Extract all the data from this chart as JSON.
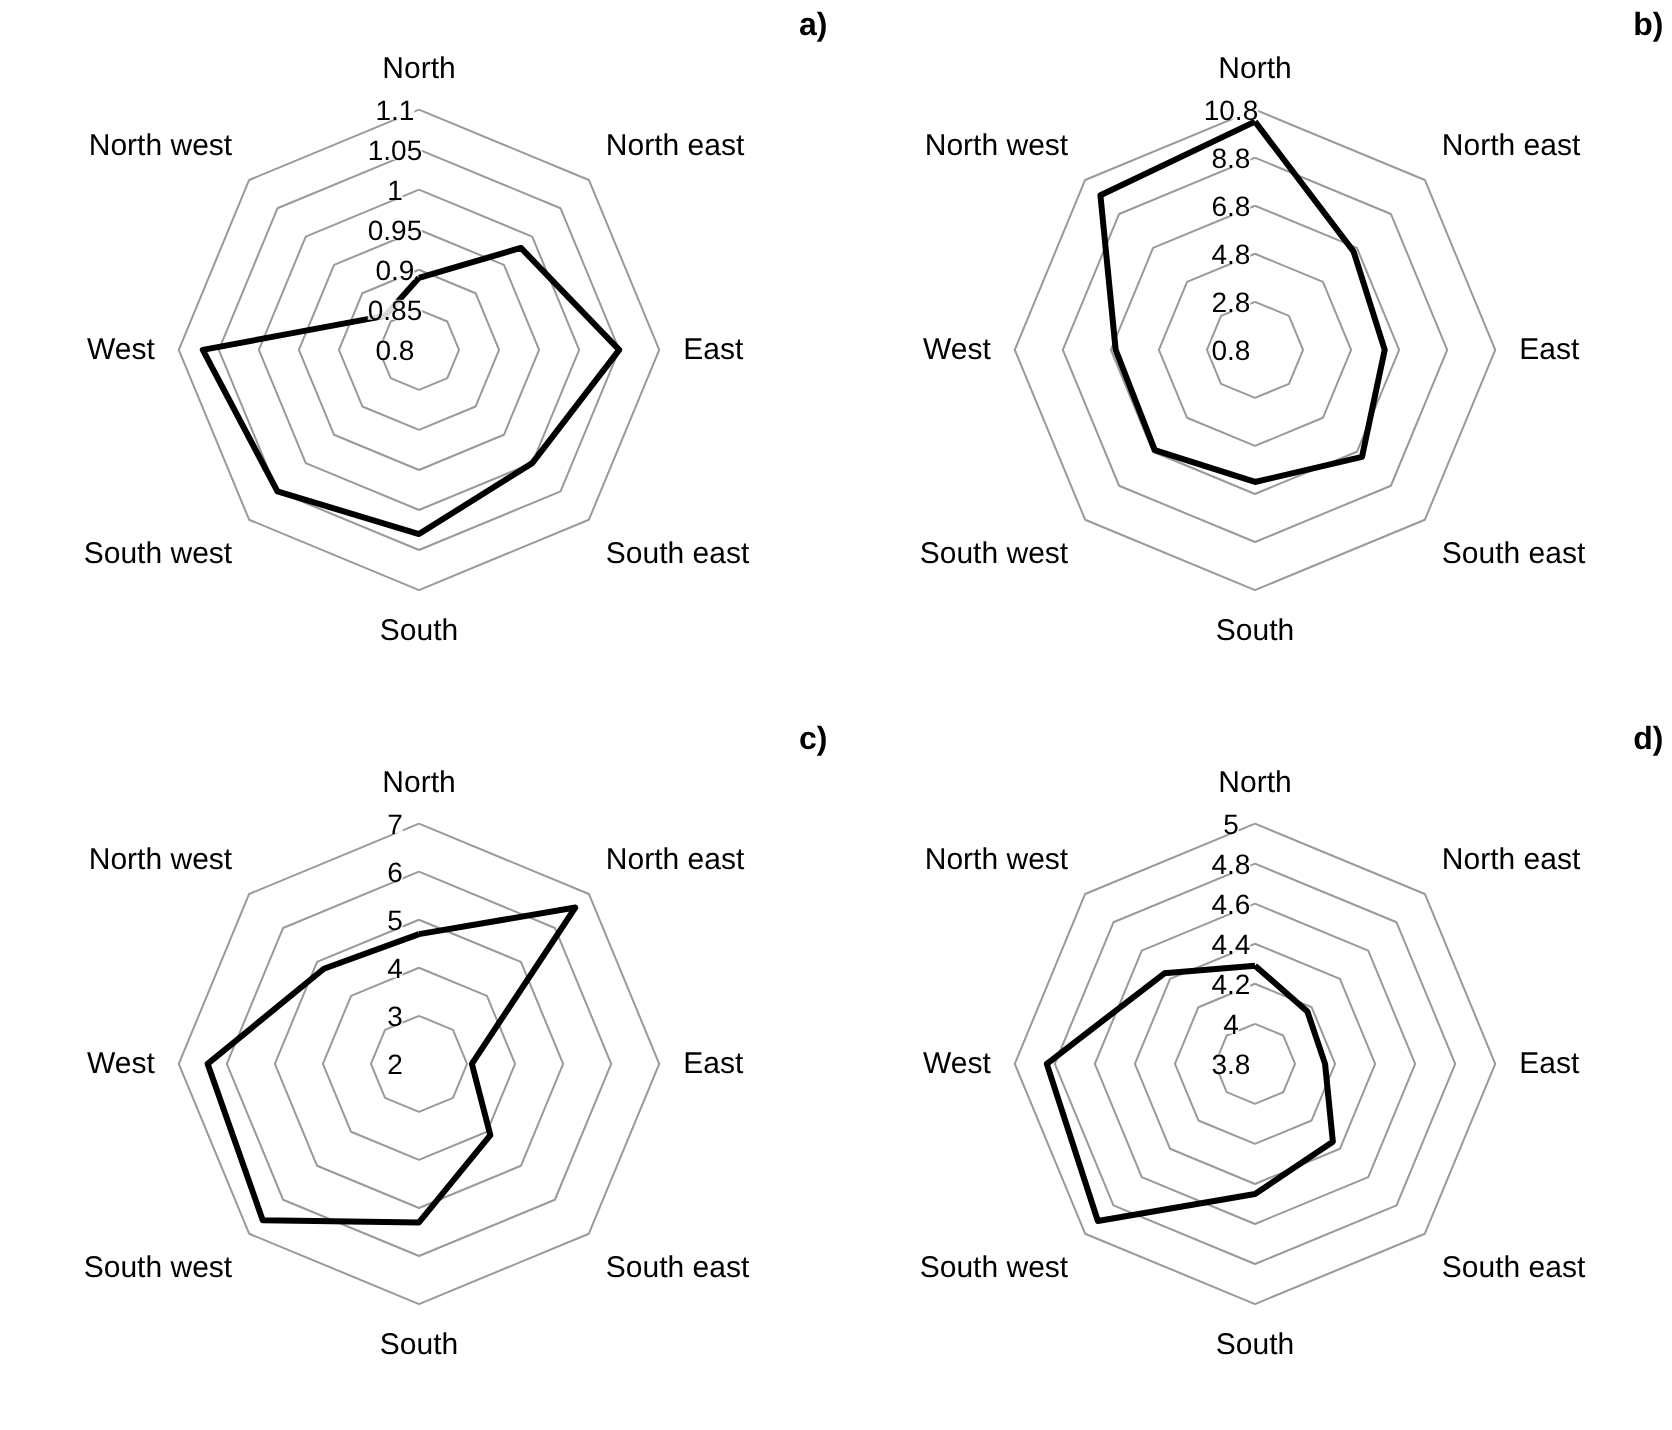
{
  "chart_data": [
    {
      "type": "radar",
      "title": "a)",
      "categories": [
        "North",
        "North east",
        "East",
        "South east",
        "South",
        "South west",
        "West",
        "North west"
      ],
      "series": [
        {
          "color": "#000000",
          "values": [
            0.89,
            0.98,
            1.05,
            1.0,
            1.03,
            1.05,
            1.07,
            0.86
          ]
        }
      ],
      "ylim": [
        0.8,
        1.1
      ],
      "yticks": [
        0.8,
        0.85,
        0.9,
        0.95,
        1,
        1.05,
        1.1
      ],
      "grid": true,
      "marker": "none"
    },
    {
      "type": "radar",
      "title": "b)",
      "categories": [
        "North",
        "North east",
        "East",
        "South east",
        "South",
        "South west",
        "West",
        "North west"
      ],
      "series": [
        {
          "color": "#000000",
          "values": [
            10.3,
            6.6,
            6.2,
            7.1,
            6.3,
            6.7,
            6.6,
            9.9
          ]
        }
      ],
      "ylim": [
        0.8,
        10.8
      ],
      "yticks": [
        0.8,
        2.8,
        4.8,
        6.8,
        8.8,
        10.8
      ],
      "grid": true,
      "marker": "none"
    },
    {
      "type": "radar",
      "title": "c)",
      "categories": [
        "North",
        "North east",
        "East",
        "South east",
        "South",
        "South west",
        "West",
        "North west"
      ],
      "series": [
        {
          "color": "#000000",
          "values": [
            4.7,
            6.6,
            3.1,
            4.1,
            5.3,
            6.6,
            6.4,
            4.8
          ]
        }
      ],
      "ylim": [
        2,
        7
      ],
      "yticks": [
        2,
        3,
        4,
        5,
        6,
        7
      ],
      "grid": true,
      "marker": "none"
    },
    {
      "type": "radar",
      "title": "d)",
      "categories": [
        "North",
        "North east",
        "East",
        "South east",
        "South",
        "South west",
        "West",
        "North west"
      ],
      "series": [
        {
          "color": "#000000",
          "values": [
            4.29,
            4.17,
            4.15,
            4.35,
            4.45,
            4.91,
            4.84,
            4.44
          ]
        }
      ],
      "ylim": [
        3.8,
        5
      ],
      "yticks": [
        3.8,
        4,
        4.2,
        4.4,
        4.6,
        4.8,
        5
      ],
      "grid": true,
      "marker": "none"
    }
  ]
}
